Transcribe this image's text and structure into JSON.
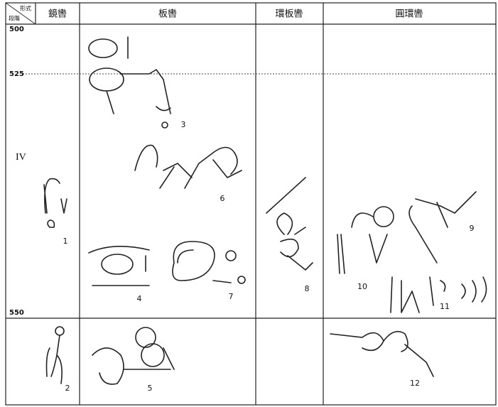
{
  "header": {
    "corner_top": "形式",
    "corner_bottom": "段階",
    "columns": [
      "鏡轡",
      "板轡",
      "環板轡",
      "圓環轡"
    ]
  },
  "periods": {
    "years": [
      500,
      525,
      550
    ],
    "phase": "IV"
  },
  "figures": [
    1,
    2,
    3,
    4,
    5,
    6,
    7,
    8,
    9,
    10,
    11,
    12
  ]
}
